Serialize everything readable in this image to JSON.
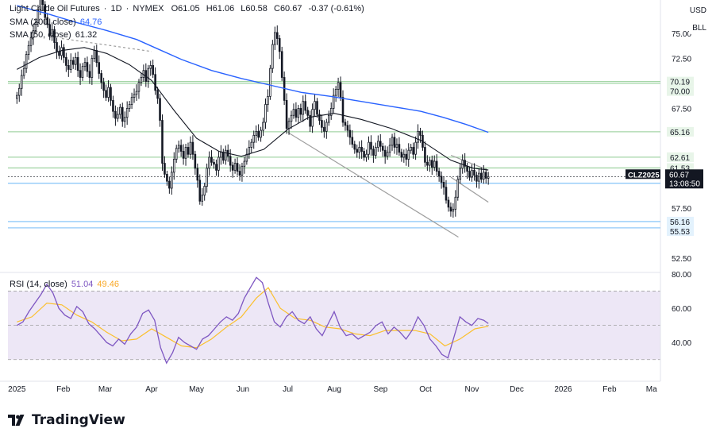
{
  "header": {
    "symbol_name": "Light Crude Oil Futures",
    "interval": "1D",
    "exchange": "NYMEX",
    "open_label": "O",
    "open": "61.05",
    "high_label": "H",
    "high": "61.06",
    "low_label": "L",
    "low": "60.58",
    "close_label": "C",
    "close": "60.67",
    "change": "-0.37 (-0.61%)",
    "sep1": "·",
    "sep2": "·"
  },
  "indicators": {
    "sma200_label": "SMA (200, close)",
    "sma200_value": "64.76",
    "sma50_label": "SMA (50, close)",
    "sma50_value": "61.32",
    "rsi_label": "RSI (14, close)",
    "rsi_value": "51.04",
    "rsi_ma_value": "49.46"
  },
  "top_right": {
    "currency": "USD",
    "unit": "BLL"
  },
  "price_tag": {
    "symbol": "CLZ2025",
    "price": "60.67",
    "countdown": "13:08:50"
  },
  "brand": "TradingView",
  "colors": {
    "up": "#131722",
    "down": "#131722",
    "sma200": "#2962ff",
    "sma50": "#131722",
    "rsi": "#7e57c2",
    "rsi_ma": "#fbc02d",
    "level_green": "#a5d6a7",
    "level_blue": "#90caf9",
    "trend": "#9e9e9e",
    "rsi_band": "#ede7f6"
  },
  "chart_data": [
    {
      "type": "candlestick",
      "title": "Light Crude Oil Futures · 1D · NYMEX",
      "ylim": [
        51.3,
        78.2
      ],
      "yticks": [
        52.5,
        55.0,
        57.5,
        60.0,
        62.5,
        65.0,
        67.5,
        70.0,
        72.5,
        75.0,
        77.5
      ],
      "ytick_labels": [
        "52.50",
        "",
        "57.50",
        "",
        "",
        "",
        "67.50",
        "",
        "72.50",
        "75.00",
        ""
      ],
      "x_labels": [
        "2025",
        "Feb",
        "Mar",
        "Apr",
        "May",
        "Jun",
        "Jul",
        "Aug",
        "Sep",
        "Oct",
        "Nov",
        "Dec",
        "2026",
        "Feb",
        "Ma"
      ],
      "x_label_days": [
        0,
        31,
        59,
        90,
        120,
        151,
        181,
        212,
        243,
        273,
        304,
        334,
        365,
        396,
        424
      ],
      "x_days_range": [
        -6,
        430
      ],
      "levels": [
        {
          "value": 70.19,
          "label": "70.19",
          "kind": "green"
        },
        {
          "value": 70.0,
          "label": "70.00",
          "kind": "green"
        },
        {
          "value": 65.16,
          "label": "65.16",
          "kind": "green"
        },
        {
          "value": 62.61,
          "label": "62.61",
          "kind": "green"
        },
        {
          "value": 61.53,
          "label": "61.53",
          "kind": "green"
        },
        {
          "value": 60.0,
          "label": "60.00",
          "kind": "blue"
        },
        {
          "value": 56.16,
          "label": "56.16",
          "kind": "blue"
        },
        {
          "value": 55.53,
          "label": "55.53",
          "kind": "blue"
        }
      ],
      "trendlines": [
        {
          "from": [
            181,
            65.1
          ],
          "to": [
            295,
            54.6
          ]
        },
        {
          "from": [
            290,
            62.8
          ],
          "to": [
            315,
            61.3
          ]
        },
        {
          "from": [
            290,
            60.6
          ],
          "to": [
            315,
            58.1
          ]
        },
        {
          "from": [
            30,
            74.5
          ],
          "to": [
            90,
            73.2
          ]
        }
      ],
      "closes": [
        68.8,
        69.5,
        70.8,
        71.5,
        72.9,
        73.8,
        74.6,
        75.3,
        76.1,
        77.4,
        78.6,
        77.9,
        76.6,
        75.9,
        74.8,
        75.4,
        74.1,
        73.2,
        72.8,
        73.6,
        72.6,
        71.8,
        71.4,
        72.3,
        71.9,
        72.6,
        71.3,
        70.6,
        71.7,
        72.1,
        71.2,
        70.6,
        72.5,
        73.3,
        72.1,
        71.0,
        70.1,
        69.3,
        68.6,
        69.6,
        68.3,
        67.2,
        66.5,
        66.9,
        67.6,
        66.2,
        66.6,
        67.5,
        67.9,
        68.6,
        68.9,
        69.2,
        70.1,
        70.6,
        71.3,
        70.2,
        71.5,
        71.8,
        70.9,
        69.3,
        68.5,
        66.3,
        62.0,
        60.9,
        60.2,
        59.5,
        61.1,
        62.4,
        63.5,
        63.8,
        63.2,
        62.5,
        63.6,
        62.9,
        64.1,
        62.9,
        61.5,
        60.3,
        58.2,
        58.8,
        59.7,
        61.5,
        62.6,
        62.1,
        61.9,
        61.3,
        62.6,
        63.1,
        62.3,
        63.3,
        62.7,
        61.8,
        61.3,
        62.0,
        61.2,
        60.8,
        61.7,
        62.2,
        62.9,
        63.6,
        64.1,
        64.8,
        65.2,
        64.6,
        65.3,
        66.1,
        67.9,
        68.7,
        71.5,
        73.9,
        75.1,
        74.5,
        73.2,
        70.6,
        68.3,
        65.5,
        66.2,
        66.8,
        67.4,
        66.6,
        67.5,
        66.9,
        68.2,
        67.3,
        66.8,
        65.7,
        67.4,
        68.2,
        66.9,
        66.3,
        65.6,
        65.2,
        66.1,
        66.8,
        67.5,
        68.8,
        69.4,
        70.1,
        68.6,
        66.1,
        65.8,
        65.3,
        64.6,
        63.9,
        63.4,
        63.1,
        63.6,
        63.2,
        62.6,
        62.9,
        64.1,
        63.4,
        62.8,
        63.6,
        64.2,
        63.7,
        63.3,
        62.7,
        63.1,
        63.8,
        64.6,
        63.6,
        63.9,
        63.1,
        62.6,
        62.9,
        62.4,
        63.3,
        63.6,
        62.9,
        64.1,
        65.2,
        64.8,
        63.6,
        62.1,
        61.8,
        62.3,
        61.6,
        62.2,
        61.2,
        60.7,
        60.1,
        59.6,
        58.3,
        57.6,
        57.2,
        57.4,
        58.6,
        60.4,
        61.5,
        62.3,
        61.7,
        61.2,
        60.6,
        61.3,
        60.8,
        60.2,
        61.0,
        60.4,
        61.1,
        60.5,
        60.67
      ],
      "sma200": [
        [
          0,
          77.8
        ],
        [
          20,
          77.0
        ],
        [
          40,
          76.1
        ],
        [
          60,
          75.3
        ],
        [
          80,
          74.4
        ],
        [
          95,
          73.4
        ],
        [
          110,
          72.4
        ],
        [
          130,
          71.3
        ],
        [
          150,
          70.5
        ],
        [
          170,
          69.8
        ],
        [
          190,
          69.1
        ],
        [
          210,
          68.7
        ],
        [
          230,
          68.2
        ],
        [
          250,
          67.7
        ],
        [
          270,
          67.2
        ],
        [
          285,
          66.6
        ],
        [
          300,
          65.9
        ],
        [
          315,
          65.1
        ]
      ],
      "sma50": [
        [
          0,
          71.4
        ],
        [
          15,
          72.6
        ],
        [
          30,
          73.3
        ],
        [
          45,
          73.6
        ],
        [
          60,
          73.0
        ],
        [
          75,
          71.9
        ],
        [
          90,
          70.3
        ],
        [
          105,
          67.3
        ],
        [
          120,
          64.5
        ],
        [
          135,
          63.2
        ],
        [
          150,
          62.7
        ],
        [
          165,
          63.4
        ],
        [
          181,
          65.4
        ],
        [
          195,
          66.6
        ],
        [
          212,
          67.0
        ],
        [
          230,
          66.4
        ],
        [
          250,
          65.5
        ],
        [
          270,
          64.3
        ],
        [
          290,
          62.3
        ],
        [
          305,
          61.5
        ],
        [
          315,
          61.32
        ]
      ]
    },
    {
      "type": "line",
      "title": "RSI (14, close)",
      "ylim": [
        22,
        80
      ],
      "yticks": [
        40.0,
        60.0,
        80.0
      ],
      "ytick_labels": [
        "40.00",
        "60.00",
        "80.00"
      ],
      "bands": [
        30,
        70
      ],
      "midline": 50,
      "rsi": [
        [
          0,
          50
        ],
        [
          4,
          52
        ],
        [
          8,
          58
        ],
        [
          12,
          63
        ],
        [
          16,
          68
        ],
        [
          20,
          74
        ],
        [
          24,
          69
        ],
        [
          28,
          60
        ],
        [
          32,
          56
        ],
        [
          36,
          54
        ],
        [
          40,
          61
        ],
        [
          44,
          58
        ],
        [
          48,
          51
        ],
        [
          52,
          48
        ],
        [
          56,
          44
        ],
        [
          60,
          40
        ],
        [
          64,
          38
        ],
        [
          68,
          42
        ],
        [
          72,
          39
        ],
        [
          76,
          45
        ],
        [
          80,
          49
        ],
        [
          84,
          57
        ],
        [
          88,
          59
        ],
        [
          92,
          53
        ],
        [
          96,
          37
        ],
        [
          100,
          28
        ],
        [
          104,
          34
        ],
        [
          108,
          43
        ],
        [
          112,
          40
        ],
        [
          116,
          38
        ],
        [
          120,
          36
        ],
        [
          124,
          42
        ],
        [
          128,
          44
        ],
        [
          132,
          48
        ],
        [
          136,
          52
        ],
        [
          140,
          55
        ],
        [
          144,
          53
        ],
        [
          148,
          57
        ],
        [
          152,
          66
        ],
        [
          156,
          72
        ],
        [
          160,
          78
        ],
        [
          164,
          75
        ],
        [
          168,
          63
        ],
        [
          172,
          52
        ],
        [
          176,
          49
        ],
        [
          180,
          55
        ],
        [
          184,
          58
        ],
        [
          188,
          53
        ],
        [
          192,
          51
        ],
        [
          196,
          55
        ],
        [
          200,
          48
        ],
        [
          204,
          44
        ],
        [
          208,
          51
        ],
        [
          212,
          58
        ],
        [
          216,
          49
        ],
        [
          220,
          44
        ],
        [
          224,
          45
        ],
        [
          228,
          42
        ],
        [
          232,
          44
        ],
        [
          236,
          46
        ],
        [
          240,
          50
        ],
        [
          244,
          52
        ],
        [
          248,
          45
        ],
        [
          252,
          49
        ],
        [
          256,
          46
        ],
        [
          260,
          42
        ],
        [
          264,
          47
        ],
        [
          268,
          55
        ],
        [
          272,
          50
        ],
        [
          276,
          42
        ],
        [
          280,
          38
        ],
        [
          284,
          33
        ],
        [
          288,
          31
        ],
        [
          292,
          43
        ],
        [
          296,
          55
        ],
        [
          300,
          52
        ],
        [
          304,
          50
        ],
        [
          308,
          54
        ],
        [
          312,
          53
        ],
        [
          315,
          51.04
        ]
      ],
      "rsi_ma": [
        [
          0,
          52
        ],
        [
          10,
          55
        ],
        [
          20,
          63
        ],
        [
          30,
          62
        ],
        [
          40,
          56
        ],
        [
          50,
          52
        ],
        [
          60,
          46
        ],
        [
          70,
          41
        ],
        [
          80,
          42
        ],
        [
          90,
          48
        ],
        [
          100,
          43
        ],
        [
          110,
          38
        ],
        [
          120,
          37
        ],
        [
          130,
          42
        ],
        [
          140,
          49
        ],
        [
          150,
          55
        ],
        [
          160,
          66
        ],
        [
          168,
          72
        ],
        [
          176,
          60
        ],
        [
          186,
          54
        ],
        [
          196,
          53
        ],
        [
          206,
          49
        ],
        [
          216,
          48
        ],
        [
          226,
          45
        ],
        [
          236,
          44
        ],
        [
          246,
          47
        ],
        [
          256,
          47
        ],
        [
          266,
          47
        ],
        [
          276,
          45
        ],
        [
          286,
          38
        ],
        [
          296,
          42
        ],
        [
          306,
          48
        ],
        [
          315,
          49.46
        ]
      ]
    }
  ]
}
